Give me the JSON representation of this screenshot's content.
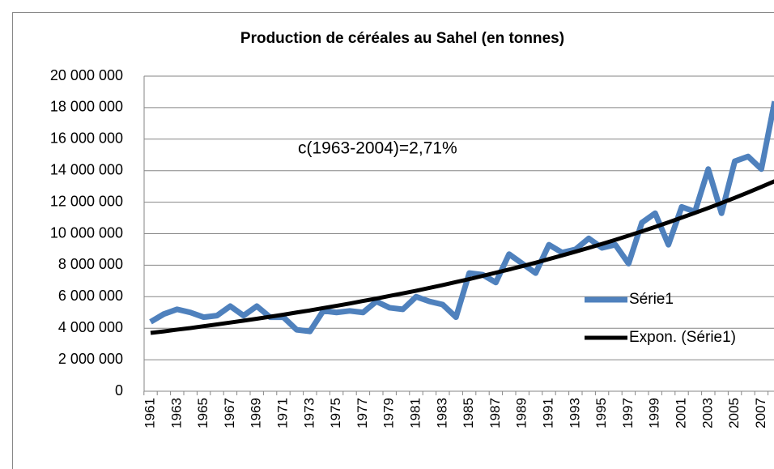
{
  "chart_data": {
    "type": "line",
    "title": "Production de céréales au Sahel (en tonnes)",
    "annotation": "c(1963-2004)=2,71%",
    "categories": [
      "1961",
      null,
      "1963",
      null,
      "1965",
      null,
      "1967",
      null,
      "1969",
      null,
      "1971",
      null,
      "1973",
      null,
      "1975",
      null,
      "1977",
      null,
      "1979",
      null,
      "1981",
      null,
      "1983",
      null,
      "1985",
      null,
      "1987",
      null,
      "1989",
      null,
      "1991",
      null,
      "1993",
      null,
      "1995",
      null,
      "1997",
      null,
      "1999",
      null,
      "2001",
      null,
      "2003",
      null,
      "2005",
      null,
      "2007",
      null
    ],
    "series": [
      {
        "name": "Série1",
        "color": "#4f81bd",
        "values": [
          4400000,
          4900000,
          5200000,
          5000000,
          4700000,
          4800000,
          5400000,
          4800000,
          5400000,
          4700000,
          4700000,
          3900000,
          3800000,
          5100000,
          5000000,
          5100000,
          5000000,
          5700000,
          5300000,
          5200000,
          6000000,
          5700000,
          5500000,
          4700000,
          7500000,
          7400000,
          6900000,
          8700000,
          8100000,
          7500000,
          9300000,
          8800000,
          9000000,
          9700000,
          9100000,
          9300000,
          8100000,
          10700000,
          11300000,
          9300000,
          11700000,
          11400000,
          14100000,
          11300000,
          14600000,
          14900000,
          14100000,
          18400000
        ]
      },
      {
        "name": "Expon. (Série1)",
        "color": "#000000",
        "values": [
          3700000,
          3800000,
          3910000,
          4010000,
          4130000,
          4240000,
          4360000,
          4480000,
          4600000,
          4730000,
          4860000,
          5000000,
          5130000,
          5280000,
          5420000,
          5570000,
          5730000,
          5880000,
          6050000,
          6210000,
          6380000,
          6560000,
          6740000,
          6930000,
          7120000,
          7320000,
          7520000,
          7730000,
          7940000,
          8160000,
          8390000,
          8620000,
          8860000,
          9100000,
          9350000,
          9610000,
          9880000,
          10150000,
          10430000,
          10720000,
          11020000,
          11320000,
          11630000,
          11950000,
          12280000,
          12620000,
          12970000,
          13330000
        ]
      }
    ],
    "ylim": [
      0,
      20000000
    ],
    "yticks": [
      0,
      {
        "value": 2000000,
        "label": "2 000 000"
      },
      {
        "value": 4000000,
        "label": "4 000 000"
      },
      {
        "value": 6000000,
        "label": "6 000 000"
      },
      {
        "value": 8000000,
        "label": "8 000 000"
      },
      {
        "value": 10000000,
        "label": "10 000 000"
      },
      {
        "value": 12000000,
        "label": "12 000 000"
      },
      {
        "value": 14000000,
        "label": "14 000 000"
      },
      {
        "value": 16000000,
        "label": "16 000 000"
      },
      {
        "value": 18000000,
        "label": "18 000 000"
      },
      {
        "value": 20000000,
        "label": "20 000 000"
      }
    ],
    "grid": true,
    "legend": "right"
  }
}
